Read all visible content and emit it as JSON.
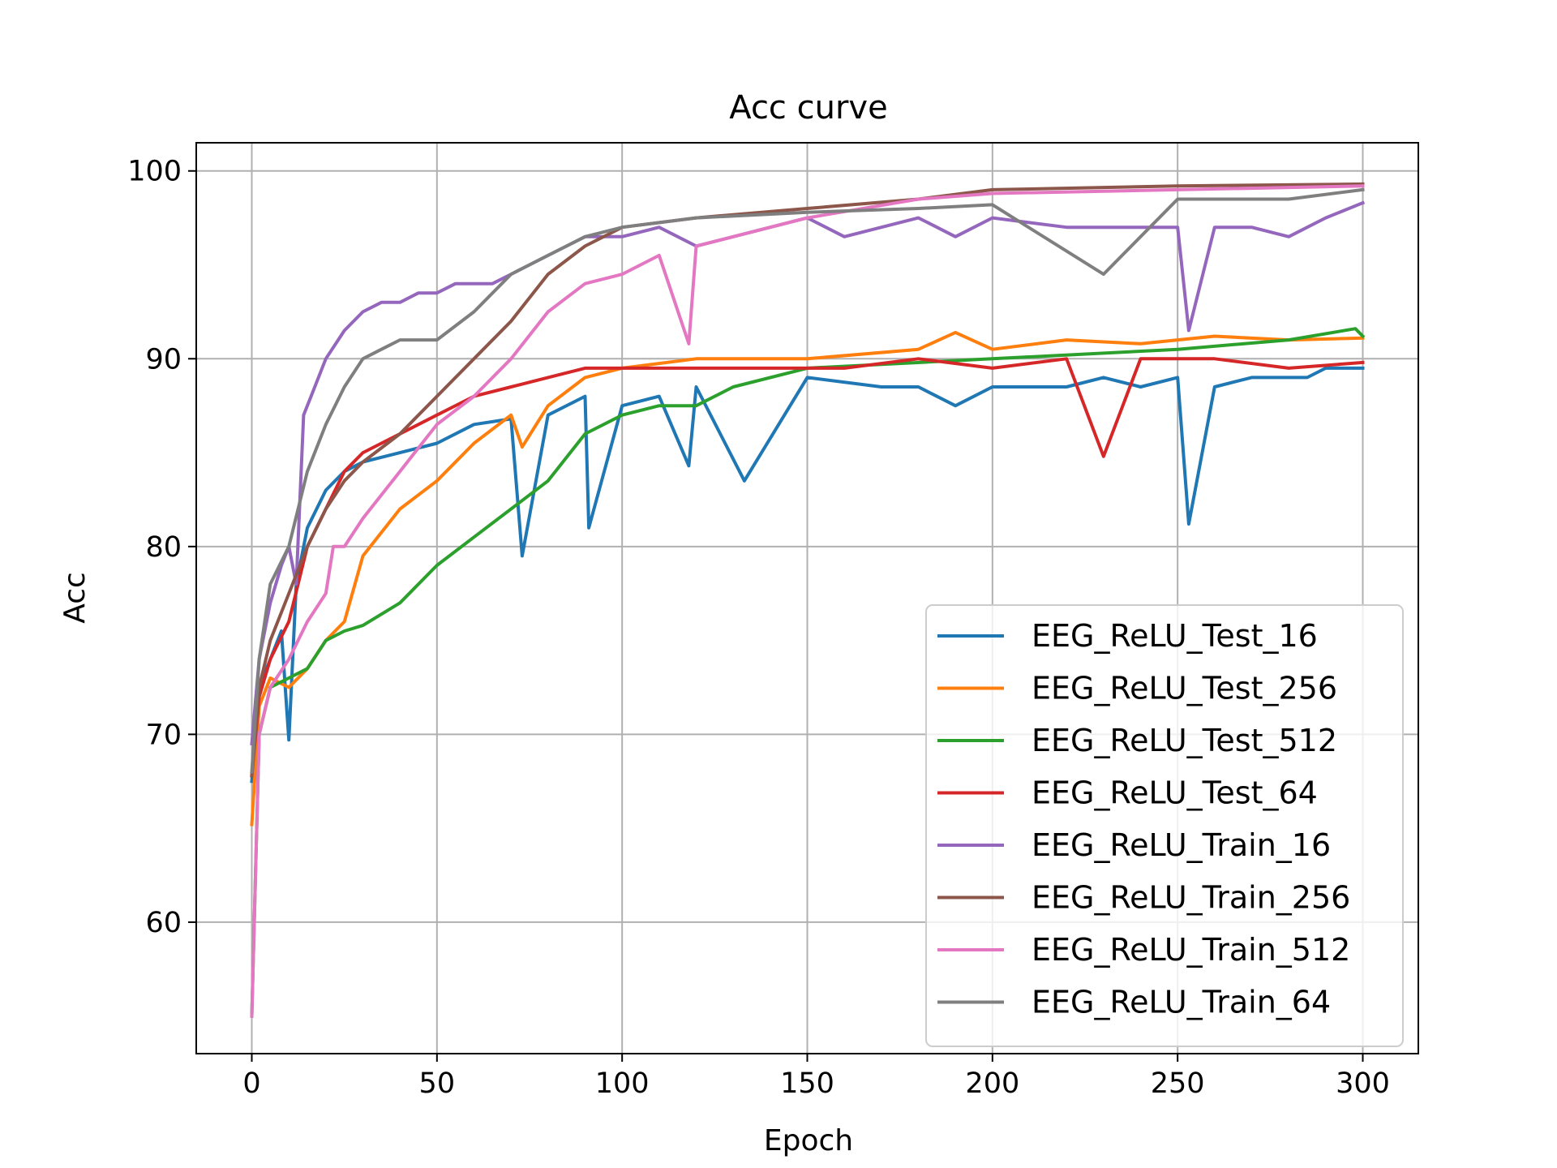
{
  "chart_data": {
    "type": "line",
    "title": "Acc curve",
    "xlabel": "Epoch",
    "ylabel": "Acc",
    "xlim": [
      -15,
      315
    ],
    "ylim": [
      53,
      101.5
    ],
    "xticks": [
      0,
      50,
      100,
      150,
      200,
      250,
      300
    ],
    "yticks": [
      60,
      70,
      80,
      90,
      100
    ],
    "grid": true,
    "legend_position": "lower-right",
    "series": [
      {
        "name": "EEG_ReLU_Test_16",
        "color": "#1f77b4",
        "x": [
          0,
          2,
          5,
          8,
          10,
          12,
          15,
          20,
          25,
          30,
          40,
          50,
          60,
          70,
          73,
          80,
          90,
          91,
          100,
          110,
          118,
          120,
          133,
          150,
          170,
          180,
          190,
          200,
          220,
          230,
          240,
          250,
          253,
          260,
          270,
          285,
          290,
          300
        ],
        "y": [
          67.5,
          72.5,
          74,
          75.5,
          69.7,
          78,
          81,
          83,
          84,
          84.5,
          85,
          85.5,
          86.5,
          86.8,
          79.5,
          87,
          88,
          81,
          87.5,
          88,
          84.3,
          88.5,
          83.5,
          89,
          88.5,
          88.5,
          87.5,
          88.5,
          88.5,
          89,
          88.5,
          89,
          81.2,
          88.5,
          89,
          89,
          89.5,
          89.5
        ]
      },
      {
        "name": "EEG_ReLU_Test_256",
        "color": "#ff7f0e",
        "x": [
          0,
          2,
          5,
          10,
          15,
          20,
          25,
          30,
          40,
          50,
          60,
          70,
          73,
          80,
          90,
          100,
          120,
          150,
          180,
          190,
          200,
          220,
          240,
          260,
          280,
          300
        ],
        "y": [
          65.2,
          71.5,
          73,
          72.5,
          73.5,
          75,
          76,
          79.5,
          82,
          83.5,
          85.5,
          87,
          85.3,
          87.5,
          89,
          89.5,
          90,
          90,
          90.5,
          91.4,
          90.5,
          91,
          90.8,
          91.2,
          91,
          91.1
        ]
      },
      {
        "name": "EEG_ReLU_Test_512",
        "color": "#2ca02c",
        "x": [
          0,
          2,
          5,
          10,
          15,
          20,
          25,
          30,
          40,
          50,
          60,
          70,
          80,
          90,
          100,
          110,
          120,
          130,
          150,
          200,
          250,
          280,
          298,
          300
        ],
        "y": [
          55,
          70,
          72.5,
          73,
          73.5,
          75,
          75.5,
          75.8,
          77,
          79,
          80.5,
          82,
          83.5,
          86,
          87,
          87.5,
          87.5,
          88.5,
          89.5,
          90,
          90.5,
          91,
          91.6,
          91.2
        ]
      },
      {
        "name": "EEG_ReLU_Test_64",
        "color": "#d62728",
        "x": [
          0,
          2,
          5,
          10,
          15,
          20,
          25,
          30,
          40,
          50,
          60,
          70,
          80,
          90,
          100,
          120,
          140,
          150,
          160,
          180,
          200,
          220,
          230,
          240,
          250,
          260,
          280,
          300
        ],
        "y": [
          67.8,
          72,
          74,
          76,
          80,
          82,
          84,
          85,
          86,
          87,
          88,
          88.5,
          89,
          89.5,
          89.5,
          89.5,
          89.5,
          89.5,
          89.5,
          90,
          89.5,
          90,
          84.8,
          90,
          90,
          90,
          89.5,
          89.8
        ]
      },
      {
        "name": "EEG_ReLU_Train_16",
        "color": "#9467bd",
        "x": [
          0,
          2,
          5,
          8,
          10,
          12,
          14,
          16,
          20,
          25,
          30,
          35,
          40,
          45,
          50,
          55,
          60,
          65,
          70,
          75,
          80,
          85,
          90,
          100,
          110,
          120,
          140,
          150,
          160,
          180,
          190,
          200,
          220,
          240,
          250,
          253,
          260,
          270,
          280,
          290,
          300
        ],
        "y": [
          69.5,
          74,
          77,
          79,
          80,
          78,
          87,
          88,
          90,
          91.5,
          92.5,
          93,
          93,
          93.5,
          93.5,
          94,
          94,
          94,
          94.5,
          95,
          95.5,
          96,
          96.5,
          96.5,
          97,
          96,
          97,
          97.5,
          96.5,
          97.5,
          96.5,
          97.5,
          97,
          97,
          97,
          91.5,
          97,
          97,
          96.5,
          97.5,
          98.3
        ]
      },
      {
        "name": "EEG_ReLU_Train_256",
        "color": "#8c564b",
        "x": [
          0,
          2,
          5,
          10,
          15,
          20,
          25,
          30,
          40,
          50,
          60,
          70,
          80,
          90,
          100,
          120,
          150,
          180,
          200,
          250,
          300
        ],
        "y": [
          67.8,
          72.5,
          75,
          77.5,
          80,
          82,
          83.5,
          84.5,
          86,
          88,
          90,
          92,
          94.5,
          96,
          97,
          97.5,
          98,
          98.5,
          99,
          99.2,
          99.3
        ]
      },
      {
        "name": "EEG_ReLU_Train_512",
        "color": "#e377c2",
        "x": [
          0,
          2,
          5,
          10,
          15,
          20,
          22,
          25,
          30,
          40,
          50,
          60,
          70,
          80,
          90,
          100,
          110,
          118,
          120,
          130,
          150,
          180,
          200,
          250,
          300
        ],
        "y": [
          55,
          70,
          72.5,
          74,
          76,
          77.5,
          80,
          80,
          81.5,
          84,
          86.5,
          88,
          90,
          92.5,
          94,
          94.5,
          95.5,
          90.8,
          96,
          96.5,
          97.5,
          98.5,
          98.8,
          99,
          99.2
        ]
      },
      {
        "name": "EEG_ReLU_Train_64",
        "color": "#7f7f7f",
        "x": [
          0,
          2,
          5,
          10,
          15,
          20,
          25,
          30,
          35,
          40,
          50,
          60,
          70,
          80,
          90,
          100,
          120,
          150,
          180,
          200,
          230,
          250,
          280,
          300
        ],
        "y": [
          68,
          74,
          78,
          80,
          84,
          86.5,
          88.5,
          90,
          90.5,
          91,
          91,
          92.5,
          94.5,
          95.5,
          96.5,
          97,
          97.5,
          97.8,
          98,
          98.2,
          94.5,
          98.5,
          98.5,
          99
        ]
      }
    ]
  }
}
